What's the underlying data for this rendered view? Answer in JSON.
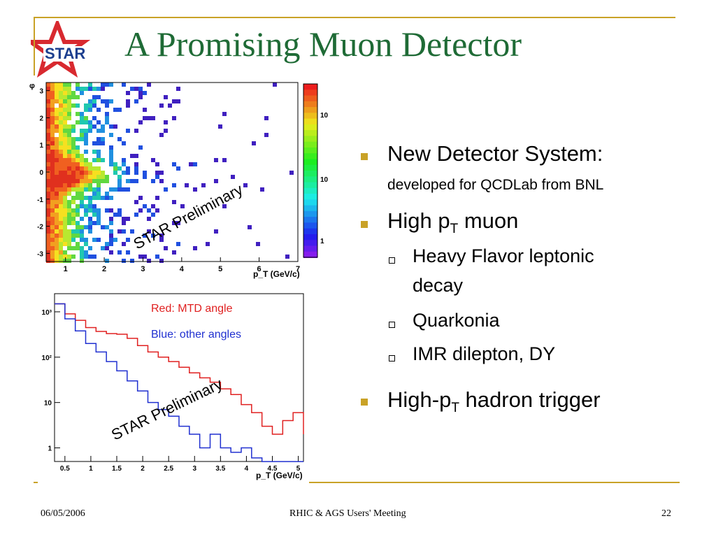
{
  "title": "A Promising Muon Detector",
  "logo": {
    "text": "STAR",
    "colors": {
      "red": "#d8292f",
      "blue": "#1c3f8f"
    }
  },
  "accent_color": "#c9a227",
  "title_color": "#1f6b36",
  "bullets": {
    "b1": {
      "main": "New Detector System:",
      "sub": "developed for QCDLab from BNL"
    },
    "b2": {
      "pre": "High p",
      "sub": "T",
      "post": " muon"
    },
    "b2_items": [
      "Heavy Flavor leptonic",
      "decay",
      "Quarkonia",
      "IMR dilepton, DY"
    ],
    "b3": {
      "pre": "High-p",
      "sub": "T",
      "post": " hadron trigger"
    }
  },
  "footer": {
    "date": "06/05/2006",
    "center": "RHIC & AGS Users' Meeting",
    "page": "22"
  },
  "chart_data": [
    {
      "type": "heatmap",
      "xlabel": "p_T (GeV/c)",
      "ylabel": "φ",
      "xlim": [
        0.5,
        7
      ],
      "ylim": [
        -3.3,
        3.3
      ],
      "x_ticks": [
        "1",
        "2",
        "3",
        "4",
        "5",
        "6",
        "7"
      ],
      "y_ticks": [
        "3",
        "2",
        "1",
        "0",
        "-1",
        "-2",
        "-3"
      ],
      "colorbar_ticks": [
        "10",
        "10",
        "1"
      ],
      "watermark": "STAR Preliminary",
      "description_points": [
        {
          "x": 0.8,
          "y": 0.0,
          "level": 1.0
        },
        {
          "x": 2.0,
          "y": 0.0,
          "level": 0.6
        },
        {
          "x": 4.0,
          "y": 0.0,
          "level": 0.3
        }
      ]
    },
    {
      "type": "line",
      "xlabel": "p_T (GeV/c)",
      "ylabel": "",
      "xlim": [
        0.3,
        5.1
      ],
      "ylim_log10": [
        -0.3,
        3.4
      ],
      "x_ticks": [
        "0.5",
        "1",
        "1.5",
        "2",
        "2.5",
        "3",
        "3.5",
        "4",
        "4.5",
        "5"
      ],
      "y_ticks": [
        "10³",
        "10²",
        "10",
        "1"
      ],
      "legend_texts": [
        "Red: MTD angle",
        "Blue: other angles"
      ],
      "watermark": "STAR Preliminary",
      "series": [
        {
          "name": "Red: MTD angle",
          "color": "#e02020",
          "x": [
            0.3,
            0.5,
            0.7,
            0.9,
            1.1,
            1.3,
            1.5,
            1.7,
            1.9,
            2.1,
            2.3,
            2.5,
            2.7,
            2.9,
            3.1,
            3.3,
            3.5,
            3.7,
            3.9,
            4.1,
            4.3,
            4.5,
            4.7,
            4.9,
            5.1
          ],
          "y": [
            1500,
            900,
            650,
            450,
            370,
            330,
            320,
            260,
            180,
            130,
            100,
            80,
            60,
            45,
            35,
            28,
            20,
            15,
            9,
            6,
            3,
            2,
            4,
            6,
            2
          ]
        },
        {
          "name": "Blue: other angles",
          "color": "#2030d0",
          "x": [
            0.3,
            0.5,
            0.7,
            0.9,
            1.1,
            1.3,
            1.5,
            1.7,
            1.9,
            2.1,
            2.3,
            2.5,
            2.7,
            2.9,
            3.1,
            3.3,
            3.5,
            3.7,
            3.9,
            4.1,
            4.3,
            4.5,
            4.7,
            4.9,
            5.1
          ],
          "y": [
            1500,
            700,
            380,
            200,
            130,
            80,
            50,
            30,
            18,
            10,
            7,
            5,
            3,
            2,
            1,
            2,
            1,
            0.8,
            1,
            0.6,
            0.5,
            0.5,
            0.5,
            0.5,
            0.5
          ]
        }
      ]
    }
  ]
}
